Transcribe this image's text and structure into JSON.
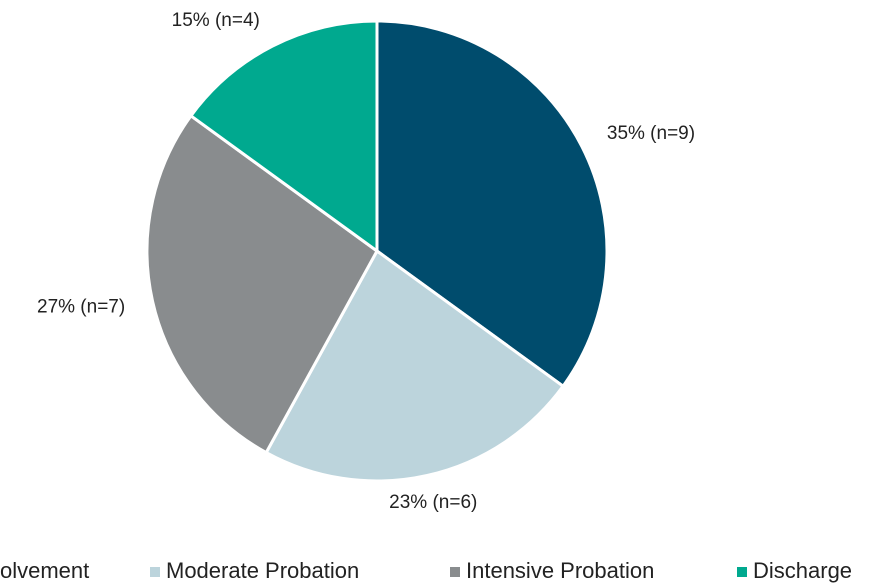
{
  "chart_data": {
    "type": "pie",
    "categories": [
      "olvement",
      "Moderate Probation",
      "Intensive Probation",
      "Discharge"
    ],
    "values": [
      35,
      23,
      27,
      15
    ],
    "value_labels": [
      "35% (n=9)",
      "23% (n=6)",
      "27% (n=7)",
      "15% (n=4)"
    ],
    "colors": [
      "#004c6d",
      "#bcd4dc",
      "#898c8e",
      "#00a98f"
    ],
    "legend": "bottom"
  }
}
